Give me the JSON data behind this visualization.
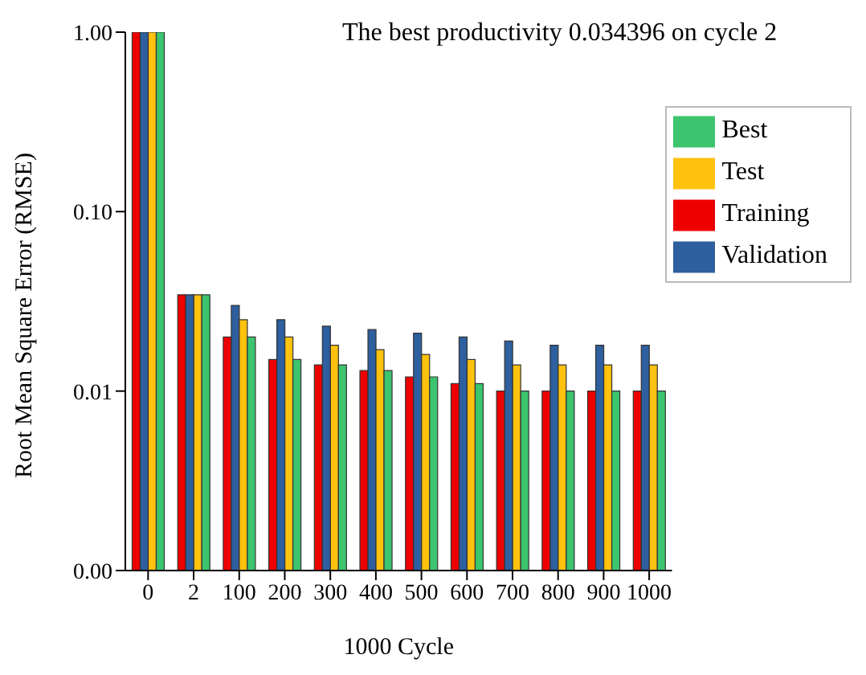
{
  "chart_data": {
    "type": "bar",
    "title": "The best productivity 0.034396 on cycle 2",
    "xlabel": "1000 Cycle",
    "ylabel": "Root Mean Square Error (RMSE)",
    "categories": [
      "0",
      "2",
      "100",
      "200",
      "300",
      "400",
      "500",
      "600",
      "700",
      "800",
      "900",
      "1000"
    ],
    "series": [
      {
        "name": "Training",
        "color": "#ee0000",
        "values": [
          1,
          0.034396,
          0.02,
          0.015,
          0.014,
          0.013,
          0.012,
          0.011,
          0.01,
          0.01,
          0.01,
          0.01
        ]
      },
      {
        "name": "Validation",
        "color": "#2e5f9e",
        "values": [
          1,
          0.034396,
          0.03,
          0.025,
          0.023,
          0.022,
          0.021,
          0.02,
          0.019,
          0.018,
          0.018,
          0.018
        ]
      },
      {
        "name": "Test",
        "color": "#ffc20e",
        "values": [
          1,
          0.034396,
          0.025,
          0.02,
          0.018,
          0.017,
          0.016,
          0.015,
          0.014,
          0.014,
          0.014,
          0.014
        ]
      },
      {
        "name": "Best",
        "color": "#3cc46e",
        "values": [
          1,
          0.034396,
          0.02,
          0.015,
          0.014,
          0.013,
          0.012,
          0.011,
          0.01,
          0.01,
          0.01,
          0.01
        ]
      }
    ],
    "log": "y",
    "ylim": [
      0.001,
      1
    ],
    "yticks": [
      {
        "value": 0.001,
        "label": "0.00"
      },
      {
        "value": 0.01,
        "label": "0.01"
      },
      {
        "value": 0.1,
        "label": "0.10"
      },
      {
        "value": 1,
        "label": "1.00"
      }
    ],
    "grid": false,
    "legend": "top right"
  }
}
